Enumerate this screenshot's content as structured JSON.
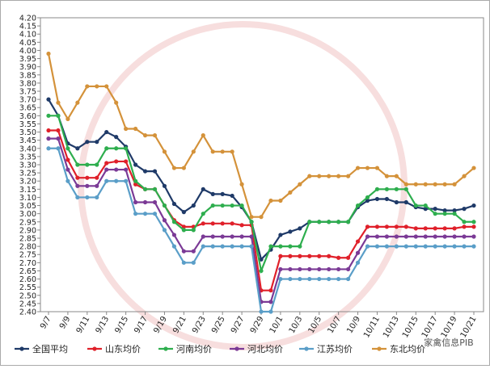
{
  "chart_data": {
    "type": "line",
    "categories": [
      "9/7",
      null,
      "9/9",
      null,
      "9/11",
      null,
      "9/13",
      null,
      "9/15",
      null,
      "9/17",
      null,
      "9/19",
      null,
      "9/21",
      null,
      "9/23",
      null,
      "9/25",
      null,
      "9/27",
      null,
      "9/29",
      null,
      "10/1",
      null,
      "10/3",
      null,
      "10/5",
      null,
      "10/7",
      null,
      "10/9",
      null,
      "10/11",
      null,
      "10/13",
      null,
      "10/15",
      null,
      "10/17",
      null,
      "10/19",
      null,
      "10/21"
    ],
    "ylim": [
      2.4,
      4.2
    ],
    "yticks": [
      {
        "value": 2.4,
        "label": "2.40"
      },
      2.45,
      {
        "value": 2.5,
        "label": "2.50"
      },
      2.55,
      {
        "value": 2.6,
        "label": "2.60"
      },
      2.65,
      {
        "value": 2.7,
        "label": "2.70"
      },
      2.75,
      {
        "value": 2.8,
        "label": "2.80"
      },
      2.85,
      {
        "value": 2.9,
        "label": "2.90"
      },
      2.95,
      {
        "value": 3,
        "label": "3.00"
      },
      3.05,
      {
        "value": 3.1,
        "label": "3.10"
      },
      3.15,
      {
        "value": 3.2,
        "label": "3.20"
      },
      3.25,
      {
        "value": 3.3,
        "label": "3.30"
      },
      3.35,
      {
        "value": 3.4,
        "label": "3.40"
      },
      3.45,
      {
        "value": 3.5,
        "label": "3.50"
      },
      3.55,
      {
        "value": 3.6,
        "label": "3.60"
      },
      3.65,
      {
        "value": 3.7,
        "label": "3.70"
      },
      3.75,
      {
        "value": 3.8,
        "label": "3.80"
      },
      3.85,
      {
        "value": 3.9,
        "label": "3.90"
      },
      3.95,
      {
        "value": 4,
        "label": "4.00"
      },
      4.05,
      {
        "value": 4.1,
        "label": "4.10"
      },
      4.15,
      {
        "value": 4.2,
        "label": "4.20"
      }
    ],
    "grid": false,
    "series": [
      {
        "name": "全国平均",
        "color": "#1f3a68",
        "values": [
          3.7,
          3.6,
          3.43,
          3.4,
          3.44,
          3.44,
          3.5,
          3.47,
          3.41,
          3.3,
          3.26,
          3.26,
          3.17,
          3.06,
          3.01,
          3.05,
          3.15,
          3.12,
          3.12,
          3.11,
          3.04,
          2.95,
          2.72,
          2.78,
          2.87,
          2.89,
          2.91,
          2.95,
          2.95,
          2.95,
          2.95,
          2.95,
          3.04,
          3.08,
          3.09,
          3.09,
          3.07,
          3.07,
          3.04,
          3.03,
          3.03,
          3.02,
          3.02,
          3.03,
          3.05
        ]
      },
      {
        "name": "山东均价",
        "color": "#e0202a",
        "values": [
          3.51,
          3.51,
          3.33,
          3.22,
          3.22,
          3.22,
          3.31,
          3.32,
          3.32,
          3.18,
          3.15,
          3.15,
          3.05,
          2.96,
          2.92,
          2.92,
          2.94,
          2.94,
          2.94,
          2.94,
          2.93,
          2.93,
          2.53,
          2.53,
          2.74,
          2.74,
          2.74,
          2.74,
          2.74,
          2.74,
          2.73,
          2.73,
          2.83,
          2.92,
          2.92,
          2.92,
          2.92,
          2.92,
          2.91,
          2.91,
          2.91,
          2.91,
          2.91,
          2.92,
          2.92
        ]
      },
      {
        "name": "河南均价",
        "color": "#2eae4e",
        "values": [
          3.6,
          3.6,
          3.4,
          3.3,
          3.3,
          3.3,
          3.4,
          3.4,
          3.4,
          3.2,
          3.15,
          3.15,
          3.05,
          2.95,
          2.9,
          2.9,
          3.0,
          3.05,
          3.05,
          3.05,
          3.05,
          2.95,
          2.65,
          2.8,
          2.8,
          2.8,
          2.8,
          2.95,
          2.95,
          2.95,
          2.95,
          2.95,
          3.05,
          3.1,
          3.15,
          3.15,
          3.15,
          3.15,
          3.05,
          3.05,
          3.0,
          3.0,
          3.0,
          2.95,
          2.95
        ]
      },
      {
        "name": "河北均价",
        "color": "#7b3a96",
        "values": [
          3.46,
          3.46,
          3.27,
          3.17,
          3.17,
          3.17,
          3.27,
          3.27,
          3.27,
          3.07,
          3.07,
          3.07,
          2.96,
          2.87,
          2.77,
          2.77,
          2.86,
          2.86,
          2.86,
          2.86,
          2.86,
          2.86,
          2.46,
          2.46,
          2.66,
          2.66,
          2.66,
          2.66,
          2.66,
          2.66,
          2.66,
          2.66,
          2.76,
          2.86,
          2.86,
          2.86,
          2.86,
          2.86,
          2.86,
          2.86,
          2.86,
          2.86,
          2.86,
          2.86,
          2.86
        ]
      },
      {
        "name": "江苏均价",
        "color": "#5a9ec8",
        "values": [
          3.4,
          3.4,
          3.2,
          3.1,
          3.1,
          3.1,
          3.2,
          3.2,
          3.2,
          3.0,
          3.0,
          3.0,
          2.9,
          2.8,
          2.7,
          2.7,
          2.8,
          2.8,
          2.8,
          2.8,
          2.8,
          2.8,
          2.4,
          2.4,
          2.6,
          2.6,
          2.6,
          2.6,
          2.6,
          2.6,
          2.6,
          2.6,
          2.7,
          2.8,
          2.8,
          2.8,
          2.8,
          2.8,
          2.8,
          2.8,
          2.8,
          2.8,
          2.8,
          2.8,
          2.8
        ]
      },
      {
        "name": "东北均价",
        "color": "#d4923a",
        "values": [
          3.98,
          3.68,
          3.58,
          3.68,
          3.78,
          3.78,
          3.78,
          3.68,
          3.52,
          3.52,
          3.48,
          3.48,
          3.38,
          3.28,
          3.28,
          3.38,
          3.48,
          3.38,
          3.38,
          3.38,
          3.18,
          2.98,
          2.98,
          3.08,
          3.08,
          3.13,
          3.18,
          3.23,
          3.23,
          3.23,
          3.23,
          3.23,
          3.28,
          3.28,
          3.28,
          3.23,
          3.23,
          3.18,
          3.18,
          3.18,
          3.18,
          3.18,
          3.18,
          3.23,
          3.28
        ]
      }
    ]
  },
  "watermark": "家禽信息PIB"
}
